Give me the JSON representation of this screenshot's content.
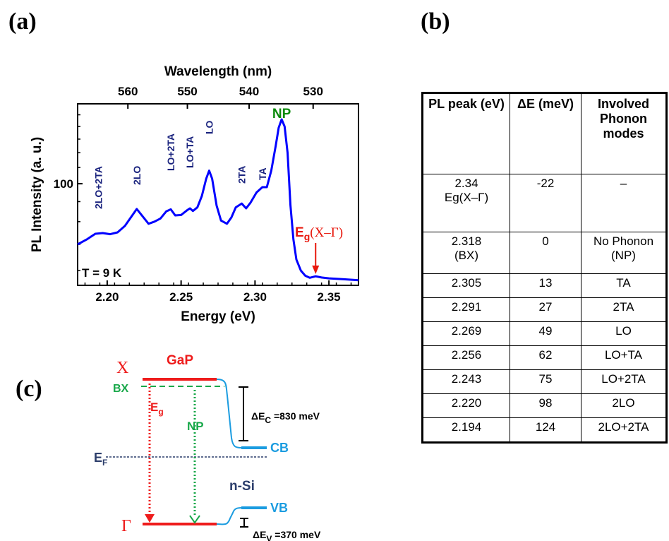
{
  "panel_labels": {
    "a": "(a)",
    "b": "(b)",
    "c": "(c)"
  },
  "chart_data": {
    "type": "line",
    "title": "",
    "xlabel": "Energy (eV)",
    "ylabel": "PL Intensity (a. u.)",
    "top_xlabel": "Wavelength (nm)",
    "xlim": [
      2.18,
      2.37
    ],
    "ylim": [
      55,
      160
    ],
    "y_scale": "log",
    "x_ticks": [
      "2.20",
      "2.25",
      "2.30",
      "2.35"
    ],
    "x_tick_values": [
      2.2,
      2.25,
      2.3,
      2.35
    ],
    "y_ticks": [
      "100"
    ],
    "y_tick_values": [
      100
    ],
    "top_ticks": [
      "560",
      "550",
      "540",
      "530"
    ],
    "top_tick_values": [
      560,
      550,
      540,
      530
    ],
    "grid": false,
    "line_color": "#0000ff",
    "series": [
      {
        "x": [
          2.18,
          2.186,
          2.192,
          2.197,
          2.202,
          2.207,
          2.212,
          2.216,
          2.22,
          2.224,
          2.228,
          2.232,
          2.236,
          2.24,
          2.243,
          2.246,
          2.25,
          2.254,
          2.256,
          2.258,
          2.261,
          2.264,
          2.267,
          2.269,
          2.271,
          2.274,
          2.277,
          2.281,
          2.284,
          2.287,
          2.291,
          2.294,
          2.297,
          2.301,
          2.305,
          2.308,
          2.311,
          2.314,
          2.316,
          2.318,
          2.32,
          2.322,
          2.324,
          2.326,
          2.328,
          2.331,
          2.334,
          2.337,
          2.341,
          2.345,
          2.35,
          2.36,
          2.37
        ],
        "y": [
          70.0,
          72.0,
          74.5,
          74.8,
          74.3,
          75.1,
          78.0,
          82.0,
          86.2,
          82.5,
          79.0,
          80.0,
          81.5,
          85.0,
          86.0,
          83.0,
          83.2,
          85.5,
          86.5,
          85.2,
          87.0,
          93.0,
          103.0,
          108.0,
          103.0,
          88.0,
          80.5,
          79.0,
          82.0,
          87.0,
          89.0,
          86.5,
          89.5,
          95.0,
          98.0,
          98.0,
          108.0,
          125.0,
          139.0,
          146.0,
          140.0,
          120.0,
          88.0,
          72.0,
          64.0,
          60.0,
          58.2,
          57.5,
          58.0,
          57.6,
          57.3,
          57.0,
          56.7
        ]
      }
    ],
    "peak_labels": [
      {
        "text": "2LO+2TA",
        "x": 2.194
      },
      {
        "text": "2LO",
        "x": 2.22
      },
      {
        "text": "LO+2TA",
        "x": 2.243
      },
      {
        "text": "LO+TA",
        "x": 2.256
      },
      {
        "text": "LO",
        "x": 2.269
      },
      {
        "text": "2TA",
        "x": 2.291
      },
      {
        "text": "TA",
        "x": 2.305
      }
    ],
    "np_label": "NP",
    "eg_label_main": "E",
    "eg_label_sub": "g",
    "eg_label_rest": "(X–Γ)",
    "eg_arrow_x": 2.341,
    "temperature_label": "T = 9 K",
    "np_color": "#0a8a0a",
    "eg_color": "#e8170c"
  },
  "table": {
    "headers": [
      "PL peak (eV)",
      "ΔE (meV)",
      "Involved Phonon modes"
    ],
    "rows": [
      [
        "2.34\nEɡ(X–Γ)",
        "-22",
        "–"
      ],
      [
        "2.318\n(BX)",
        "0",
        "No Phonon\n(NP)"
      ],
      [
        "2.305",
        "13",
        "TA"
      ],
      [
        "2.291",
        "27",
        "2TA"
      ],
      [
        "2.269",
        "49",
        "LO"
      ],
      [
        "2.256",
        "62",
        "LO+TA"
      ],
      [
        "2.243",
        "75",
        "LO+2TA"
      ],
      [
        "2.220",
        "98",
        "2LO"
      ],
      [
        "2.194",
        "124",
        "2LO+2TA"
      ]
    ]
  },
  "band_diagram": {
    "X_label": "X",
    "BX_label": "BX",
    "GaP_label": "GaP",
    "Eg_main": "E",
    "Eg_sub": "g",
    "NP_label": "NP",
    "dEc_main": "ΔE",
    "dEc_sub": "C",
    "dEc_rest": " =830 meV",
    "CB_label": "CB",
    "EF_main": "E",
    "EF_sub": "F",
    "nSi_label": "n-Si",
    "VB_label": "VB",
    "Gamma_label": "Γ",
    "dEv_main": "ΔE",
    "dEv_sub": "V",
    "dEv_rest": " =370 meV",
    "colors": {
      "gap": "#ee1c1c",
      "bx": "#19a84a",
      "si": "#1b9ce0",
      "ef": "#2c3e6b",
      "label": "#2c3e6b"
    }
  }
}
